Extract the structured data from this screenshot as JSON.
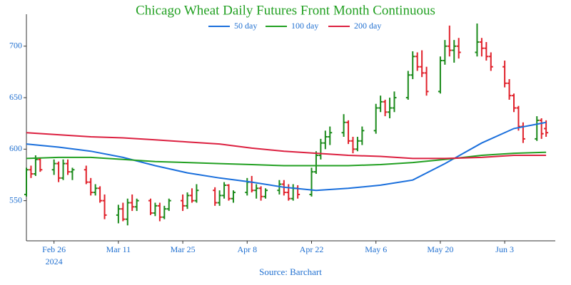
{
  "chart_data": {
    "type": "ohlc",
    "title": "Chicago Wheat Daily Futures Front Month Continuous",
    "source": "Source: Barchart",
    "xtick_sublabel": "2024",
    "up_color": "#1a8a1a",
    "down_color": "#e0202a",
    "x": [
      "2024-02-20",
      "2024-02-21",
      "2024-02-22",
      "2024-02-23",
      "2024-02-26",
      "2024-02-27",
      "2024-02-28",
      "2024-02-29",
      "2024-03-01",
      "2024-03-04",
      "2024-03-05",
      "2024-03-06",
      "2024-03-07",
      "2024-03-08",
      "2024-03-11",
      "2024-03-12",
      "2024-03-13",
      "2024-03-14",
      "2024-03-15",
      "2024-03-18",
      "2024-03-19",
      "2024-03-20",
      "2024-03-21",
      "2024-03-22",
      "2024-03-25",
      "2024-03-26",
      "2024-03-27",
      "2024-03-28",
      "2024-04-01",
      "2024-04-02",
      "2024-04-03",
      "2024-04-04",
      "2024-04-05",
      "2024-04-08",
      "2024-04-09",
      "2024-04-10",
      "2024-04-11",
      "2024-04-12",
      "2024-04-15",
      "2024-04-16",
      "2024-04-17",
      "2024-04-18",
      "2024-04-19",
      "2024-04-22",
      "2024-04-23",
      "2024-04-24",
      "2024-04-25",
      "2024-04-26",
      "2024-04-29",
      "2024-04-30",
      "2024-05-01",
      "2024-05-02",
      "2024-05-03",
      "2024-05-06",
      "2024-05-07",
      "2024-05-08",
      "2024-05-09",
      "2024-05-10",
      "2024-05-13",
      "2024-05-14",
      "2024-05-15",
      "2024-05-16",
      "2024-05-17",
      "2024-05-20",
      "2024-05-21",
      "2024-05-22",
      "2024-05-23",
      "2024-05-24",
      "2024-05-28",
      "2024-05-29",
      "2024-05-30",
      "2024-05-31",
      "2024-06-03",
      "2024-06-04",
      "2024-06-05",
      "2024-06-06",
      "2024-06-07",
      "2024-06-10",
      "2024-06-11",
      "2024-06-12"
    ],
    "open": [
      556,
      580,
      576,
      590,
      580,
      586,
      572,
      586,
      578,
      580,
      568,
      558,
      562,
      550,
      536,
      542,
      532,
      548,
      544,
      550,
      538,
      545,
      534,
      542,
      550,
      545,
      555,
      550,
      560,
      548,
      555,
      565,
      552,
      558,
      568,
      560,
      562,
      554,
      560,
      566,
      558,
      552,
      562,
      556,
      578,
      594,
      606,
      612,
      616,
      626,
      608,
      600,
      608,
      618,
      640,
      646,
      636,
      640,
      650,
      672,
      690,
      680,
      674,
      656,
      686,
      700,
      696,
      700,
      694,
      704,
      698,
      690,
      680,
      664,
      652,
      640,
      622,
      610,
      628,
      620
    ],
    "high": [
      582,
      584,
      594,
      592,
      590,
      588,
      590,
      590,
      582,
      584,
      572,
      566,
      564,
      556,
      546,
      548,
      552,
      556,
      552,
      552,
      548,
      548,
      545,
      552,
      556,
      558,
      562,
      566,
      563,
      560,
      568,
      566,
      560,
      572,
      574,
      566,
      564,
      562,
      570,
      570,
      566,
      566,
      565,
      582,
      598,
      610,
      618,
      622,
      634,
      628,
      612,
      612,
      622,
      644,
      652,
      648,
      650,
      656,
      676,
      695,
      694,
      696,
      680,
      690,
      706,
      720,
      706,
      708,
      722,
      708,
      704,
      694,
      686,
      668,
      654,
      642,
      626,
      632,
      630,
      628
    ],
    "low": [
      554,
      572,
      574,
      578,
      575,
      568,
      570,
      575,
      570,
      566,
      555,
      555,
      548,
      532,
      528,
      530,
      526,
      540,
      540,
      536,
      535,
      530,
      532,
      540,
      540,
      542,
      548,
      548,
      545,
      545,
      552,
      550,
      548,
      555,
      558,
      552,
      550,
      552,
      556,
      555,
      550,
      550,
      552,
      554,
      576,
      590,
      600,
      604,
      612,
      605,
      596,
      598,
      604,
      615,
      636,
      632,
      630,
      636,
      648,
      668,
      676,
      670,
      652,
      654,
      682,
      690,
      684,
      688,
      690,
      690,
      686,
      676,
      660,
      648,
      636,
      618,
      606,
      608,
      610,
      612
    ],
    "close": [
      580,
      576,
      590,
      580,
      586,
      572,
      586,
      578,
      580,
      568,
      558,
      562,
      550,
      536,
      542,
      532,
      548,
      544,
      550,
      538,
      545,
      534,
      542,
      550,
      545,
      555,
      550,
      560,
      548,
      555,
      565,
      552,
      558,
      568,
      560,
      562,
      554,
      560,
      566,
      558,
      552,
      562,
      556,
      578,
      594,
      606,
      612,
      616,
      626,
      608,
      600,
      608,
      618,
      640,
      646,
      636,
      640,
      650,
      672,
      690,
      680,
      674,
      656,
      686,
      700,
      696,
      700,
      694,
      704,
      698,
      690,
      680,
      664,
      652,
      640,
      622,
      610,
      628,
      615,
      616
    ],
    "series": [
      {
        "name": "50 day",
        "color": "#1a6fdc",
        "x": [
          "2024-02-20",
          "2024-02-27",
          "2024-03-05",
          "2024-03-12",
          "2024-03-19",
          "2024-03-26",
          "2024-04-02",
          "2024-04-09",
          "2024-04-16",
          "2024-04-23",
          "2024-04-30",
          "2024-05-07",
          "2024-05-14",
          "2024-05-21",
          "2024-05-29",
          "2024-06-05",
          "2024-06-12"
        ],
        "values": [
          605,
          602,
          598,
          592,
          584,
          577,
          572,
          568,
          563,
          560,
          562,
          565,
          570,
          586,
          606,
          620,
          626
        ]
      },
      {
        "name": "100 day",
        "color": "#22a022",
        "x": [
          "2024-02-20",
          "2024-02-27",
          "2024-03-05",
          "2024-03-12",
          "2024-03-19",
          "2024-03-26",
          "2024-04-02",
          "2024-04-09",
          "2024-04-16",
          "2024-04-23",
          "2024-04-30",
          "2024-05-07",
          "2024-05-14",
          "2024-05-21",
          "2024-05-29",
          "2024-06-05",
          "2024-06-12"
        ],
        "values": [
          591,
          592,
          592,
          590,
          588,
          587,
          586,
          585,
          584,
          584,
          584,
          585,
          587,
          590,
          594,
          596,
          597
        ]
      },
      {
        "name": "200 day",
        "color": "#dc2040",
        "x": [
          "2024-02-20",
          "2024-02-27",
          "2024-03-05",
          "2024-03-12",
          "2024-03-19",
          "2024-03-26",
          "2024-04-02",
          "2024-04-09",
          "2024-04-16",
          "2024-04-23",
          "2024-04-30",
          "2024-05-07",
          "2024-05-14",
          "2024-05-21",
          "2024-05-29",
          "2024-06-05",
          "2024-06-12"
        ],
        "values": [
          616,
          614,
          612,
          611,
          609,
          607,
          605,
          601,
          598,
          596,
          594,
          593,
          591,
          591,
          592,
          594,
          594
        ]
      }
    ],
    "xlim": [
      "2024-02-20",
      "2024-06-14"
    ],
    "xticks": [
      {
        "value": "2024-02-26",
        "label": "Feb 26"
      },
      {
        "value": "2024-03-11",
        "label": "Mar 11"
      },
      {
        "value": "2024-03-25",
        "label": "Mar 25"
      },
      {
        "value": "2024-04-08",
        "label": "Apr 8"
      },
      {
        "value": "2024-04-22",
        "label": "Apr 22"
      },
      {
        "value": "2024-05-06",
        "label": "May 6"
      },
      {
        "value": "2024-05-20",
        "label": "May 20"
      },
      {
        "value": "2024-06-03",
        "label": "Jun 3"
      }
    ],
    "ylim": [
      511,
      731
    ],
    "yticks": [
      550,
      600,
      650,
      700
    ]
  }
}
